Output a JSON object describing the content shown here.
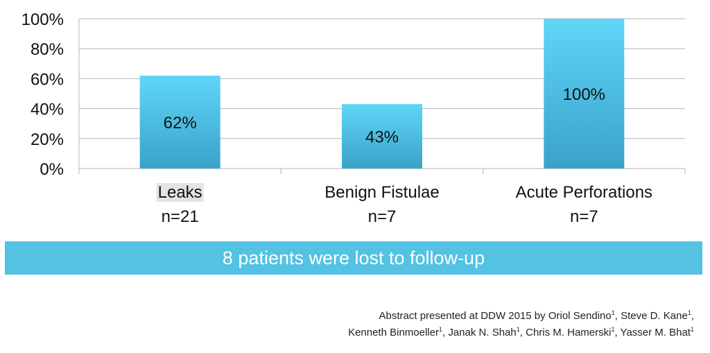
{
  "chart_data": {
    "type": "bar",
    "categories": [
      "Leaks",
      "Benign Fistulae",
      "Acute Perforations"
    ],
    "sample_sizes": [
      "n=21",
      "n=7",
      "n=7"
    ],
    "values": [
      62,
      43,
      100
    ],
    "data_labels": [
      "62%",
      "43%",
      "100%"
    ],
    "ylim": [
      0,
      100
    ],
    "yticks": [
      "0%",
      "20%",
      "40%",
      "60%",
      "80%",
      "100%"
    ],
    "grid": true,
    "legend": "none",
    "title": "",
    "xlabel": "",
    "ylabel": "",
    "colors": {
      "bar_top": "#5fd6f7",
      "bar_bottom": "#3aa2c9",
      "gridline": "#b4b4b4"
    }
  },
  "banner": {
    "text": "8 patients were lost to follow-up",
    "color": "#53c2e3"
  },
  "footer": {
    "line1_prefix": "Abstract presented at DDW 2015 by ",
    "authors": [
      {
        "name": "Oriol Sendino",
        "sup": "1"
      },
      {
        "name": "Steve D. Kane",
        "sup": "1"
      },
      {
        "name": "Kenneth Binmoeller",
        "sup": "1"
      },
      {
        "name": "Janak N. Shah",
        "sup": "1"
      },
      {
        "name": "Chris M. Hamerski",
        "sup": "1"
      },
      {
        "name": "Yasser M. Bhat",
        "sup": "1"
      }
    ]
  }
}
